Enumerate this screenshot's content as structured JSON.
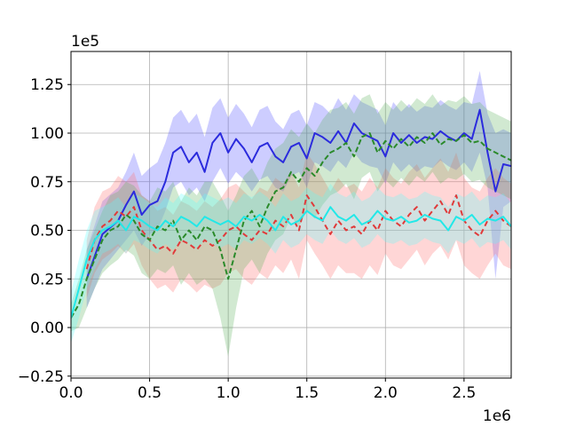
{
  "chart_data": {
    "type": "line",
    "title": "",
    "xlabel": "",
    "ylabel": "",
    "x_offset_label": "1e6",
    "y_offset_label": "1e5",
    "xlim": [
      0,
      2800000
    ],
    "ylim": [
      -26000,
      142000
    ],
    "grid": true,
    "x_ticks": [
      0,
      500000,
      1000000,
      1500000,
      2000000,
      2500000
    ],
    "x_tick_labels": [
      "0.0",
      "0.5",
      "1.0",
      "1.5",
      "2.0",
      "2.5"
    ],
    "y_ticks": [
      -25000,
      0,
      25000,
      50000,
      75000,
      100000,
      125000
    ],
    "y_tick_labels": [
      "−0.25",
      "0.00",
      "0.25",
      "0.50",
      "0.75",
      "1.00",
      "1.25"
    ],
    "series": [
      {
        "color": "#2b2bdd",
        "band_color": "#4a4aff",
        "dash": "",
        "x": [
          100000,
          200000,
          300000,
          350000,
          400000,
          450000,
          500000,
          550000,
          600000,
          650000,
          700000,
          750000,
          800000,
          850000,
          900000,
          950000,
          1000000,
          1050000,
          1100000,
          1150000,
          1200000,
          1250000,
          1300000,
          1350000,
          1400000,
          1450000,
          1500000,
          1550000,
          1600000,
          1650000,
          1700000,
          1750000,
          1800000,
          1850000,
          1900000,
          1950000,
          2000000,
          2050000,
          2100000,
          2150000,
          2200000,
          2250000,
          2300000,
          2350000,
          2400000,
          2450000,
          2500000,
          2550000,
          2600000,
          2650000,
          2700000,
          2750000,
          2800000
        ],
        "y": [
          25000,
          48000,
          55000,
          63000,
          70000,
          58000,
          63000,
          65000,
          75000,
          90000,
          93000,
          85000,
          90000,
          80000,
          95000,
          100000,
          90000,
          97000,
          92000,
          85000,
          93000,
          95000,
          88000,
          85000,
          93000,
          95000,
          87000,
          100000,
          98000,
          95000,
          101000,
          95000,
          105000,
          100000,
          98000,
          96000,
          88000,
          100000,
          95000,
          99000,
          95000,
          98000,
          97000,
          101000,
          98000,
          96000,
          100000,
          97000,
          112000,
          90000,
          70000,
          84000,
          83000
        ],
        "lower": [
          10000,
          30000,
          40000,
          45000,
          50000,
          42000,
          48000,
          50000,
          60000,
          72000,
          75000,
          68000,
          72000,
          65000,
          75000,
          82000,
          74000,
          80000,
          76000,
          70000,
          76000,
          78000,
          72000,
          70000,
          78000,
          80000,
          72000,
          85000,
          83000,
          80000,
          86000,
          82000,
          90000,
          85000,
          83000,
          82000,
          74000,
          85000,
          80000,
          84000,
          80000,
          83000,
          82000,
          86000,
          83000,
          81000,
          85000,
          80000,
          90000,
          72000,
          25000,
          62000,
          65000
        ],
        "upper": [
          40000,
          65000,
          72000,
          80000,
          90000,
          78000,
          82000,
          85000,
          95000,
          108000,
          112000,
          105000,
          110000,
          98000,
          113000,
          118000,
          108000,
          115000,
          110000,
          103000,
          112000,
          114000,
          106000,
          102000,
          110000,
          112000,
          104000,
          116000,
          114000,
          110000,
          118000,
          112000,
          120000,
          116000,
          114000,
          112000,
          104000,
          116000,
          111000,
          115000,
          111000,
          114000,
          113000,
          117000,
          114000,
          112000,
          116000,
          115000,
          132000,
          110000,
          100000,
          102000,
          100000
        ]
      },
      {
        "color": "#e03a3a",
        "band_color": "#ff6b6b",
        "dash": "6,4",
        "x": [
          100000,
          150000,
          200000,
          250000,
          300000,
          350000,
          400000,
          450000,
          500000,
          550000,
          600000,
          650000,
          700000,
          750000,
          800000,
          850000,
          900000,
          950000,
          1000000,
          1050000,
          1100000,
          1150000,
          1200000,
          1250000,
          1300000,
          1350000,
          1400000,
          1450000,
          1500000,
          1550000,
          1600000,
          1650000,
          1700000,
          1750000,
          1800000,
          1850000,
          1900000,
          1950000,
          2000000,
          2050000,
          2100000,
          2150000,
          2200000,
          2250000,
          2300000,
          2350000,
          2400000,
          2450000,
          2500000,
          2550000,
          2600000,
          2650000,
          2700000,
          2750000,
          2800000
        ],
        "y": [
          30000,
          45000,
          52000,
          55000,
          60000,
          57000,
          62000,
          50000,
          45000,
          40000,
          42000,
          38000,
          45000,
          43000,
          40000,
          45000,
          42000,
          45000,
          50000,
          52000,
          48000,
          45000,
          50000,
          48000,
          55000,
          52000,
          58000,
          50000,
          68000,
          62000,
          55000,
          48000,
          55000,
          50000,
          52000,
          48000,
          55000,
          50000,
          60000,
          55000,
          52000,
          58000,
          62000,
          55000,
          60000,
          65000,
          58000,
          68000,
          55000,
          50000,
          47000,
          55000,
          60000,
          55000,
          52000
        ],
        "lower": [
          15000,
          28000,
          35000,
          38000,
          42000,
          38000,
          43000,
          32000,
          25000,
          20000,
          22000,
          18000,
          25000,
          22000,
          18000,
          22000,
          20000,
          22000,
          28000,
          30000,
          25000,
          22000,
          28000,
          25000,
          32000,
          28000,
          35000,
          25000,
          45000,
          38000,
          32000,
          25000,
          32000,
          28000,
          28000,
          25000,
          32000,
          27000,
          38000,
          32000,
          30000,
          35000,
          40000,
          32000,
          38000,
          42000,
          35000,
          45000,
          32000,
          28000,
          25000,
          32000,
          38000,
          32000,
          30000
        ],
        "upper": [
          45000,
          62000,
          70000,
          72000,
          78000,
          75000,
          80000,
          68000,
          65000,
          60000,
          62000,
          58000,
          65000,
          63000,
          60000,
          65000,
          62000,
          66000,
          72000,
          74000,
          70000,
          66000,
          72000,
          70000,
          77000,
          74000,
          80000,
          72000,
          90000,
          84000,
          77000,
          70000,
          77000,
          72000,
          74000,
          70000,
          77000,
          72000,
          82000,
          77000,
          74000,
          80000,
          84000,
          77000,
          82000,
          87000,
          80000,
          90000,
          77000,
          72000,
          70000,
          77000,
          82000,
          77000,
          74000
        ]
      },
      {
        "color": "#2a8a2a",
        "band_color": "#5ab05a",
        "dash": "6,3",
        "x": [
          0,
          50000,
          100000,
          150000,
          200000,
          250000,
          300000,
          350000,
          400000,
          450000,
          500000,
          550000,
          600000,
          650000,
          700000,
          750000,
          800000,
          850000,
          900000,
          950000,
          1000000,
          1050000,
          1100000,
          1150000,
          1200000,
          1250000,
          1300000,
          1350000,
          1400000,
          1450000,
          1500000,
          1550000,
          1600000,
          1650000,
          1700000,
          1750000,
          1800000,
          1850000,
          1900000,
          1950000,
          2000000,
          2050000,
          2100000,
          2150000,
          2200000,
          2250000,
          2300000,
          2350000,
          2400000,
          2450000,
          2500000,
          2550000,
          2600000,
          2650000,
          2700000,
          2750000,
          2800000
        ],
        "y": [
          5000,
          12000,
          25000,
          35000,
          45000,
          50000,
          52000,
          58000,
          55000,
          48000,
          45000,
          52000,
          50000,
          55000,
          45000,
          50000,
          45000,
          52000,
          50000,
          40000,
          25000,
          40000,
          55000,
          60000,
          52000,
          62000,
          70000,
          72000,
          80000,
          75000,
          82000,
          78000,
          85000,
          90000,
          92000,
          95000,
          88000,
          98000,
          100000,
          90000,
          96000,
          92000,
          97000,
          93000,
          98000,
          95000,
          100000,
          94000,
          97000,
          96000,
          99000,
          95000,
          96000,
          92000,
          90000,
          88000,
          86000
        ],
        "lower": [
          -2000,
          0,
          10000,
          20000,
          28000,
          32000,
          35000,
          40000,
          37000,
          28000,
          25000,
          30000,
          28000,
          32000,
          22000,
          28000,
          22000,
          25000,
          20000,
          5000,
          -15000,
          10000,
          30000,
          35000,
          28000,
          38000,
          45000,
          48000,
          57000,
          52000,
          60000,
          56000,
          63000,
          68000,
          70000,
          74000,
          66000,
          77000,
          80000,
          70000,
          76000,
          72000,
          77000,
          73000,
          78000,
          75000,
          80000,
          74000,
          77000,
          76000,
          79000,
          75000,
          76000,
          72000,
          70000,
          68000,
          66000
        ],
        "upper": [
          12000,
          25000,
          40000,
          50000,
          60000,
          68000,
          70000,
          75000,
          73000,
          68000,
          65000,
          72000,
          70000,
          75000,
          65000,
          72000,
          68000,
          75000,
          75000,
          68000,
          60000,
          68000,
          78000,
          82000,
          75000,
          85000,
          92000,
          95000,
          102000,
          98000,
          105000,
          100000,
          107000,
          112000,
          113000,
          116000,
          110000,
          118000,
          120000,
          110000,
          116000,
          112000,
          117000,
          113000,
          118000,
          115000,
          120000,
          114000,
          117000,
          116000,
          119000,
          115000,
          116000,
          112000,
          110000,
          108000,
          106000
        ]
      },
      {
        "color": "#22e8e8",
        "band_color": "#55ffff",
        "dash": "",
        "x": [
          0,
          50000,
          100000,
          150000,
          200000,
          250000,
          300000,
          350000,
          400000,
          450000,
          500000,
          550000,
          600000,
          650000,
          700000,
          750000,
          800000,
          850000,
          900000,
          950000,
          1000000,
          1050000,
          1100000,
          1150000,
          1200000,
          1250000,
          1300000,
          1350000,
          1400000,
          1450000,
          1500000,
          1550000,
          1600000,
          1650000,
          1700000,
          1750000,
          1800000,
          1850000,
          1900000,
          1950000,
          2000000,
          2050000,
          2100000,
          2150000,
          2200000,
          2250000,
          2300000,
          2350000,
          2400000,
          2450000,
          2500000,
          2550000,
          2600000,
          2650000,
          2700000,
          2750000,
          2800000
        ],
        "y": [
          5000,
          20000,
          35000,
          45000,
          50000,
          52000,
          55000,
          50000,
          57000,
          55000,
          52000,
          50000,
          55000,
          52000,
          57000,
          55000,
          52000,
          57000,
          55000,
          53000,
          55000,
          52000,
          57000,
          55000,
          58000,
          55000,
          50000,
          57000,
          53000,
          55000,
          60000,
          57000,
          55000,
          62000,
          57000,
          55000,
          58000,
          53000,
          55000,
          60000,
          56000,
          55000,
          57000,
          54000,
          55000,
          58000,
          56000,
          55000,
          50000,
          57000,
          55000,
          58000,
          53000,
          56000,
          55000,
          57000,
          52000
        ],
        "lower": [
          -8000,
          5000,
          20000,
          30000,
          38000,
          40000,
          43000,
          38000,
          45000,
          43000,
          40000,
          38000,
          43000,
          40000,
          45000,
          43000,
          40000,
          45000,
          43000,
          41000,
          43000,
          40000,
          45000,
          43000,
          46000,
          43000,
          38000,
          45000,
          41000,
          43000,
          48000,
          45000,
          43000,
          50000,
          45000,
          43000,
          46000,
          41000,
          43000,
          48000,
          44000,
          43000,
          45000,
          42000,
          43000,
          46000,
          44000,
          43000,
          38000,
          45000,
          43000,
          46000,
          41000,
          44000,
          43000,
          45000,
          40000
        ],
        "upper": [
          18000,
          35000,
          50000,
          60000,
          62000,
          64000,
          67000,
          62000,
          69000,
          67000,
          64000,
          62000,
          67000,
          64000,
          69000,
          67000,
          64000,
          69000,
          67000,
          65000,
          67000,
          64000,
          69000,
          67000,
          70000,
          67000,
          62000,
          69000,
          65000,
          67000,
          72000,
          69000,
          67000,
          74000,
          69000,
          67000,
          70000,
          65000,
          67000,
          72000,
          68000,
          67000,
          69000,
          66000,
          67000,
          70000,
          68000,
          67000,
          62000,
          69000,
          67000,
          70000,
          65000,
          68000,
          67000,
          69000,
          64000
        ]
      }
    ]
  }
}
